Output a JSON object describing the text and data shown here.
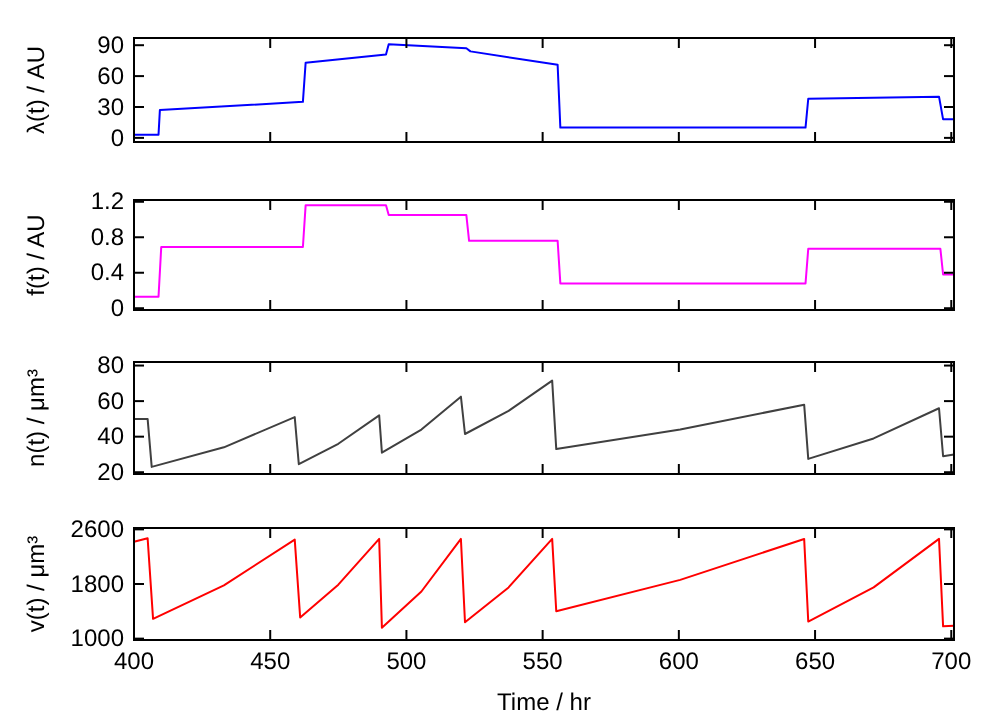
{
  "chart_data": [
    {
      "type": "line",
      "ylabel": "λ(t) / AU",
      "xlim": [
        400,
        701
      ],
      "xticks": [
        400,
        450,
        500,
        550,
        600,
        650,
        700
      ],
      "ylim": [
        -4,
        97
      ],
      "yticks": [
        0,
        30,
        60,
        90
      ],
      "tick_labels": "y",
      "x": [
        400,
        409,
        409.5,
        462,
        463,
        492.5,
        493.5,
        522,
        523.5,
        555.5,
        556.5,
        646.5,
        647.5,
        695.5,
        697,
        701
      ],
      "series": [
        {
          "color": "#0000ff",
          "values": [
            3,
            3,
            27,
            35,
            73,
            81,
            91,
            87,
            84,
            71,
            10,
            10,
            38,
            40,
            18,
            18
          ]
        }
      ]
    },
    {
      "type": "line",
      "ylabel": "f(t) / AU",
      "xlim": [
        400,
        701
      ],
      "xticks": [
        400,
        450,
        500,
        550,
        600,
        650,
        700
      ],
      "ylim": [
        -0.02,
        1.22
      ],
      "yticks": [
        0,
        0.4,
        0.8,
        1.2
      ],
      "tick_labels": "y",
      "x": [
        400,
        409,
        410,
        462,
        463,
        492.5,
        493.5,
        522,
        523,
        555.5,
        556.5,
        646.5,
        647.5,
        696,
        697,
        701
      ],
      "series": [
        {
          "color": "#ff00ff",
          "values": [
            0.13,
            0.13,
            0.69,
            0.69,
            1.16,
            1.16,
            1.05,
            1.05,
            0.76,
            0.76,
            0.28,
            0.28,
            0.67,
            0.67,
            0.38,
            0.38
          ]
        }
      ]
    },
    {
      "type": "line",
      "ylabel": "n(t) / μm³",
      "xlim": [
        400,
        701
      ],
      "xticks": [
        400,
        450,
        500,
        550,
        600,
        650,
        700
      ],
      "ylim": [
        19,
        82
      ],
      "yticks": [
        20,
        40,
        60,
        80
      ],
      "tick_labels": "y",
      "x": [
        400,
        405,
        406.5,
        433,
        459,
        460.5,
        475,
        490,
        491,
        505.5,
        520,
        521.5,
        537.5,
        553.5,
        555,
        600.5,
        646,
        647.5,
        671.5,
        695.5,
        697,
        701
      ],
      "series": [
        {
          "color": "#404040",
          "values": [
            50,
            50,
            23,
            34,
            51,
            24.5,
            36,
            52,
            31,
            44,
            62.5,
            41.5,
            54.5,
            71.5,
            33,
            44,
            58,
            27.5,
            39,
            56,
            29,
            30
          ]
        }
      ]
    },
    {
      "type": "line",
      "ylabel": "v(t) / μm³",
      "xlabel": "Time / hr",
      "xlim": [
        400,
        701
      ],
      "xticks": [
        400,
        450,
        500,
        550,
        600,
        650,
        700
      ],
      "ylim": [
        980,
        2620
      ],
      "yticks": [
        1000,
        1800,
        2600
      ],
      "x": [
        400,
        405,
        407,
        433,
        459,
        461,
        475,
        490,
        491,
        505.5,
        520,
        521.5,
        537.5,
        553.5,
        555,
        600.5,
        646,
        647.5,
        671.5,
        695.5,
        697,
        701
      ],
      "series": [
        {
          "color": "#ff0000",
          "values": [
            2420,
            2470,
            1290,
            1780,
            2450,
            1310,
            1790,
            2460,
            1160,
            1690,
            2460,
            1240,
            1750,
            2460,
            1400,
            1860,
            2460,
            1250,
            1750,
            2460,
            1180,
            1190
          ]
        }
      ]
    }
  ]
}
